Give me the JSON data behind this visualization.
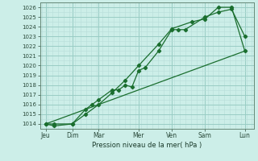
{
  "title": "",
  "xlabel": "Pression niveau de la mer( hPa )",
  "background_color": "#cceee8",
  "grid_color_minor": "#b8ddd8",
  "grid_color_major": "#99ccc4",
  "line_color": "#1a6e2e",
  "ylim": [
    1013.5,
    1026.5
  ],
  "xlim": [
    -0.05,
    6.4
  ],
  "days": [
    "Jeu",
    "Dim",
    "Mar",
    "Mer",
    "Ven",
    "Sam",
    "Lun"
  ],
  "day_positions": [
    0.12,
    0.92,
    1.72,
    2.92,
    3.92,
    4.92,
    6.12
  ],
  "series1_x": [
    0.12,
    0.38,
    0.92,
    1.32,
    1.52,
    1.72,
    2.12,
    2.32,
    2.52,
    2.72,
    2.92,
    3.12,
    3.52,
    3.92,
    4.12,
    4.32,
    4.92,
    5.32,
    5.72,
    6.12
  ],
  "series1_y": [
    1014.0,
    1014.0,
    1014.0,
    1015.5,
    1016.0,
    1016.5,
    1017.5,
    1017.5,
    1018.0,
    1017.8,
    1019.5,
    1019.8,
    1021.5,
    1023.7,
    1023.7,
    1023.7,
    1025.0,
    1025.5,
    1025.8,
    1023.0
  ],
  "series2_x": [
    0.12,
    0.38,
    0.92,
    1.32,
    1.72,
    2.12,
    2.52,
    2.92,
    3.52,
    3.92,
    4.52,
    4.92,
    5.32,
    5.72,
    6.12
  ],
  "series2_y": [
    1014.0,
    1013.8,
    1014.0,
    1015.0,
    1016.0,
    1017.2,
    1018.5,
    1020.0,
    1022.2,
    1023.8,
    1024.5,
    1024.8,
    1026.0,
    1026.0,
    1021.5
  ],
  "series3_x": [
    0.12,
    6.12
  ],
  "series3_y": [
    1014.0,
    1021.5
  ],
  "yticks": [
    1014,
    1015,
    1016,
    1017,
    1018,
    1019,
    1020,
    1021,
    1022,
    1023,
    1024,
    1025,
    1026
  ],
  "xtick_minor_step": 0.2
}
